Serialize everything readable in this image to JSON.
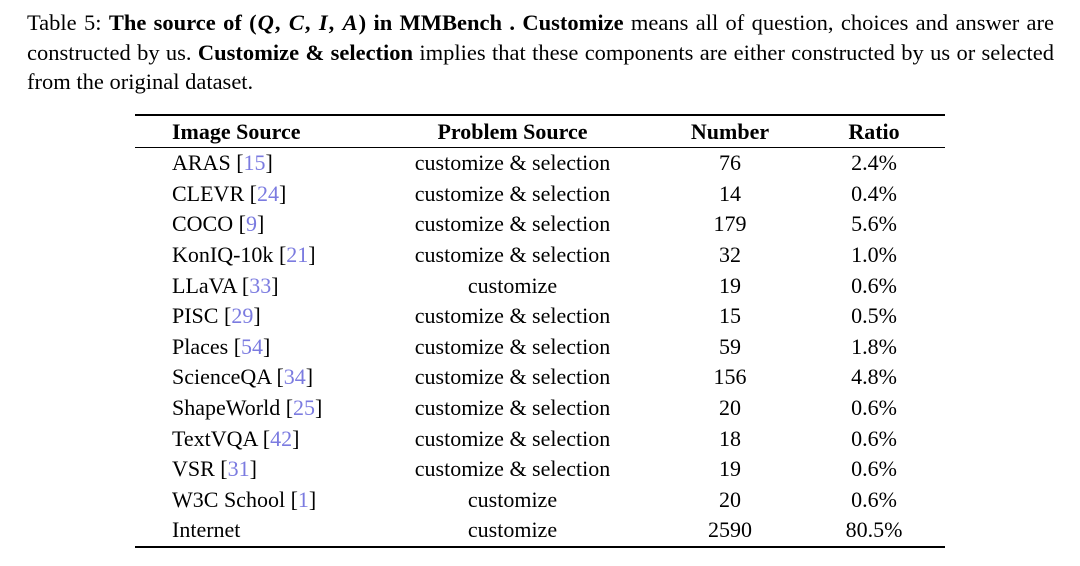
{
  "caption": {
    "segments": [
      {
        "style": "normal",
        "text": "Table 5: "
      },
      {
        "style": "bold",
        "text": "The source of "
      },
      {
        "style": "bold",
        "text": "("
      },
      {
        "style": "math",
        "text": "Q"
      },
      {
        "style": "bold",
        "text": ", "
      },
      {
        "style": "math",
        "text": "C"
      },
      {
        "style": "bold",
        "text": ", "
      },
      {
        "style": "math",
        "text": "I"
      },
      {
        "style": "bold",
        "text": ", "
      },
      {
        "style": "math",
        "text": "A"
      },
      {
        "style": "bold",
        "text": ") in MMBench . Customize"
      },
      {
        "style": "normal",
        "text": " means all of question, choices and answer are constructed by us. "
      },
      {
        "style": "bold",
        "text": "Customize & selection"
      },
      {
        "style": "normal",
        "text": " implies that these components are either constructed by us or selected from the original dataset."
      }
    ]
  },
  "table": {
    "columns": [
      "Image Source",
      "Problem Source",
      "Number",
      "Ratio"
    ],
    "rows": [
      {
        "image_source": "ARAS",
        "cite": "15",
        "problem_source": "customize & selection",
        "number": "76",
        "ratio": "2.4%"
      },
      {
        "image_source": "CLEVR",
        "cite": "24",
        "problem_source": "customize & selection",
        "number": "14",
        "ratio": "0.4%"
      },
      {
        "image_source": "COCO",
        "cite": "9",
        "problem_source": "customize & selection",
        "number": "179",
        "ratio": "5.6%"
      },
      {
        "image_source": "KonIQ-10k",
        "cite": "21",
        "problem_source": "customize & selection",
        "number": "32",
        "ratio": "1.0%"
      },
      {
        "image_source": "LLaVA",
        "cite": "33",
        "problem_source": "customize",
        "number": "19",
        "ratio": "0.6%"
      },
      {
        "image_source": "PISC",
        "cite": "29",
        "problem_source": "customize & selection",
        "number": "15",
        "ratio": "0.5%"
      },
      {
        "image_source": "Places",
        "cite": "54",
        "problem_source": "customize & selection",
        "number": "59",
        "ratio": "1.8%"
      },
      {
        "image_source": "ScienceQA",
        "cite": "34",
        "problem_source": "customize & selection",
        "number": "156",
        "ratio": "4.8%"
      },
      {
        "image_source": "ShapeWorld",
        "cite": "25",
        "problem_source": "customize & selection",
        "number": "20",
        "ratio": "0.6%"
      },
      {
        "image_source": "TextVQA",
        "cite": "42",
        "problem_source": "customize & selection",
        "number": "18",
        "ratio": "0.6%"
      },
      {
        "image_source": "VSR",
        "cite": "31",
        "problem_source": "customize & selection",
        "number": "19",
        "ratio": "0.6%"
      },
      {
        "image_source": "W3C School",
        "cite": "1",
        "problem_source": "customize",
        "number": "20",
        "ratio": "0.6%"
      },
      {
        "image_source": "Internet",
        "cite": "",
        "problem_source": "customize",
        "number": "2590",
        "ratio": "80.5%"
      }
    ]
  },
  "colors": {
    "citation": "#7b7be0",
    "text": "#000000",
    "rule": "#000000"
  }
}
